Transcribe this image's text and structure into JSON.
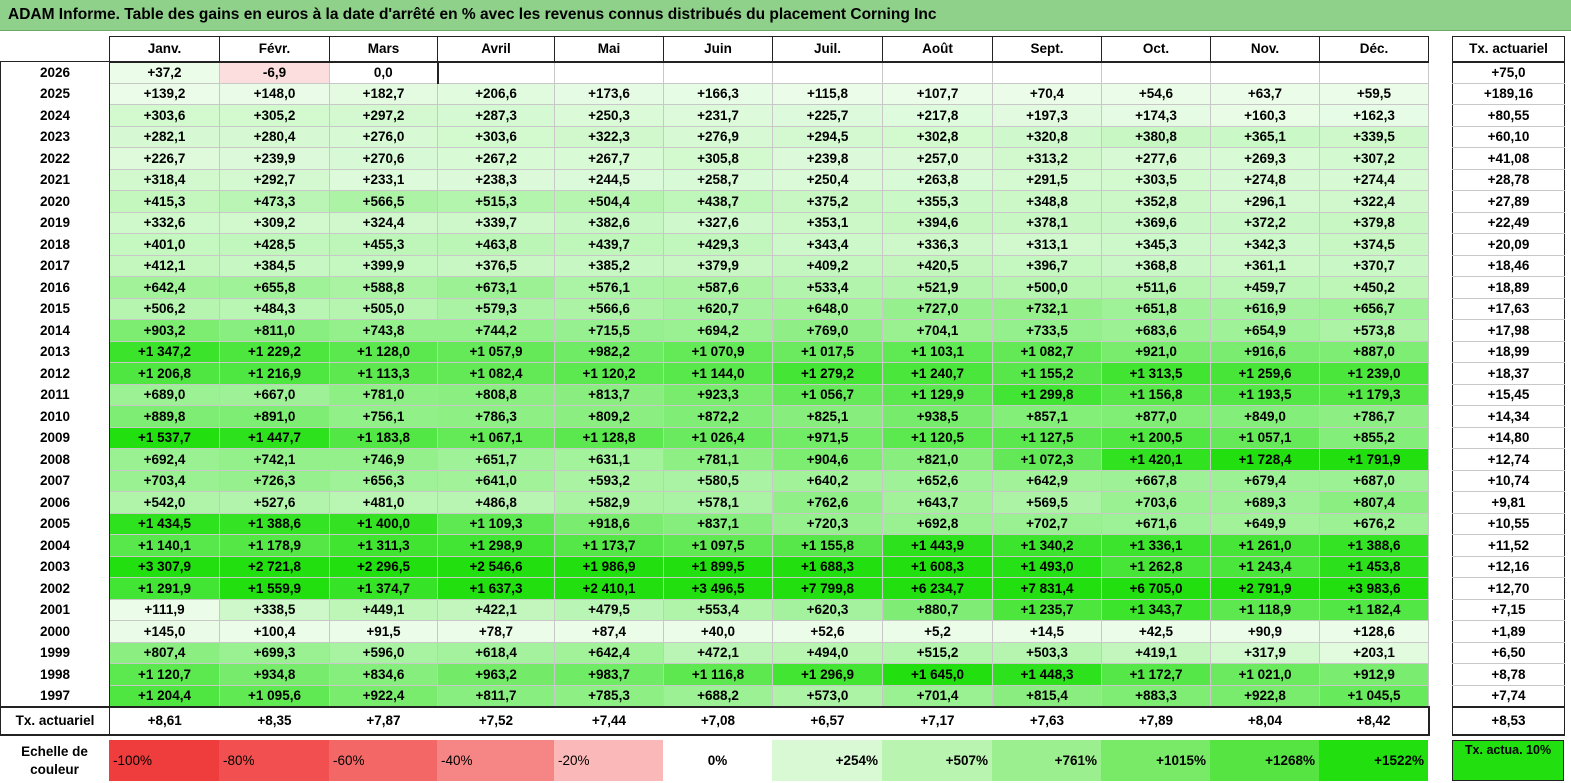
{
  "title": "ADAM Informe. Table des gains en euros à la date d'arrêté en % avec les revenus connus distribués du placement Corning Inc",
  "chart_data": {
    "type": "table",
    "months": [
      "Janv.",
      "Févr.",
      "Mars",
      "Avril",
      "Mai",
      "Juin",
      "Juil.",
      "Août",
      "Sept.",
      "Oct.",
      "Nov.",
      "Déc."
    ],
    "actuarial_header": "Tx. actuariel",
    "rows": [
      {
        "year": "2026",
        "values": [
          "+37,2",
          "-6,9",
          "0,0",
          "",
          "",
          "",
          "",
          "",
          "",
          "",
          "",
          ""
        ],
        "rate": "+75,0"
      },
      {
        "year": "2025",
        "values": [
          "+139,2",
          "+148,0",
          "+182,7",
          "+206,6",
          "+173,6",
          "+166,3",
          "+115,8",
          "+107,7",
          "+70,4",
          "+54,6",
          "+63,7",
          "+59,5"
        ],
        "rate": "+189,16"
      },
      {
        "year": "2024",
        "values": [
          "+303,6",
          "+305,2",
          "+297,2",
          "+287,3",
          "+250,3",
          "+231,7",
          "+225,7",
          "+217,8",
          "+197,3",
          "+174,3",
          "+160,3",
          "+162,3"
        ],
        "rate": "+80,55"
      },
      {
        "year": "2023",
        "values": [
          "+282,1",
          "+280,4",
          "+276,0",
          "+303,6",
          "+322,3",
          "+276,9",
          "+294,5",
          "+302,8",
          "+320,8",
          "+380,8",
          "+365,1",
          "+339,5"
        ],
        "rate": "+60,10"
      },
      {
        "year": "2022",
        "values": [
          "+226,7",
          "+239,9",
          "+270,6",
          "+267,2",
          "+267,7",
          "+305,8",
          "+239,8",
          "+257,0",
          "+313,2",
          "+277,6",
          "+269,3",
          "+307,2"
        ],
        "rate": "+41,08"
      },
      {
        "year": "2021",
        "values": [
          "+318,4",
          "+292,7",
          "+233,1",
          "+238,3",
          "+244,5",
          "+258,7",
          "+250,4",
          "+263,8",
          "+291,5",
          "+303,5",
          "+274,8",
          "+274,4"
        ],
        "rate": "+28,78"
      },
      {
        "year": "2020",
        "values": [
          "+415,3",
          "+473,3",
          "+566,5",
          "+515,3",
          "+504,4",
          "+438,7",
          "+375,2",
          "+355,3",
          "+348,8",
          "+352,8",
          "+296,1",
          "+322,4"
        ],
        "rate": "+27,89"
      },
      {
        "year": "2019",
        "values": [
          "+332,6",
          "+309,2",
          "+324,4",
          "+339,7",
          "+382,6",
          "+327,6",
          "+353,1",
          "+394,6",
          "+378,1",
          "+369,6",
          "+372,2",
          "+379,8"
        ],
        "rate": "+22,49"
      },
      {
        "year": "2018",
        "values": [
          "+401,0",
          "+428,5",
          "+455,3",
          "+463,8",
          "+439,7",
          "+429,3",
          "+343,4",
          "+336,3",
          "+313,1",
          "+345,3",
          "+342,3",
          "+374,5"
        ],
        "rate": "+20,09"
      },
      {
        "year": "2017",
        "values": [
          "+412,1",
          "+384,5",
          "+399,9",
          "+376,5",
          "+385,2",
          "+379,9",
          "+409,2",
          "+420,5",
          "+396,7",
          "+368,8",
          "+361,1",
          "+370,7"
        ],
        "rate": "+18,46"
      },
      {
        "year": "2016",
        "values": [
          "+642,4",
          "+655,8",
          "+588,8",
          "+673,1",
          "+576,1",
          "+587,6",
          "+533,4",
          "+521,9",
          "+500,0",
          "+511,6",
          "+459,7",
          "+450,2"
        ],
        "rate": "+18,89"
      },
      {
        "year": "2015",
        "values": [
          "+506,2",
          "+484,3",
          "+505,0",
          "+579,3",
          "+566,6",
          "+620,7",
          "+648,0",
          "+727,0",
          "+732,1",
          "+651,8",
          "+616,9",
          "+656,7"
        ],
        "rate": "+17,63"
      },
      {
        "year": "2014",
        "values": [
          "+903,2",
          "+811,0",
          "+743,8",
          "+744,2",
          "+715,5",
          "+694,2",
          "+769,0",
          "+704,1",
          "+733,5",
          "+683,6",
          "+654,9",
          "+573,8"
        ],
        "rate": "+17,98"
      },
      {
        "year": "2013",
        "values": [
          "+1 347,2",
          "+1 229,2",
          "+1 128,0",
          "+1 057,9",
          "+982,2",
          "+1 070,9",
          "+1 017,5",
          "+1 103,1",
          "+1 082,7",
          "+921,0",
          "+916,6",
          "+887,0"
        ],
        "rate": "+18,99"
      },
      {
        "year": "2012",
        "values": [
          "+1 206,8",
          "+1 216,9",
          "+1 113,3",
          "+1 082,4",
          "+1 120,2",
          "+1 144,0",
          "+1 279,2",
          "+1 240,7",
          "+1 155,2",
          "+1 313,5",
          "+1 259,6",
          "+1 239,0"
        ],
        "rate": "+18,37"
      },
      {
        "year": "2011",
        "values": [
          "+689,0",
          "+667,0",
          "+781,0",
          "+808,8",
          "+813,7",
          "+923,3",
          "+1 056,7",
          "+1 129,9",
          "+1 299,8",
          "+1 156,8",
          "+1 193,5",
          "+1 179,3"
        ],
        "rate": "+15,45"
      },
      {
        "year": "2010",
        "values": [
          "+889,8",
          "+891,0",
          "+756,1",
          "+786,3",
          "+809,2",
          "+872,2",
          "+825,1",
          "+938,5",
          "+857,1",
          "+877,0",
          "+849,0",
          "+786,7"
        ],
        "rate": "+14,34"
      },
      {
        "year": "2009",
        "values": [
          "+1 537,7",
          "+1 447,7",
          "+1 183,8",
          "+1 067,1",
          "+1 128,8",
          "+1 026,4",
          "+971,5",
          "+1 120,5",
          "+1 127,5",
          "+1 200,5",
          "+1 057,1",
          "+855,2"
        ],
        "rate": "+14,80"
      },
      {
        "year": "2008",
        "values": [
          "+692,4",
          "+742,1",
          "+746,9",
          "+651,7",
          "+631,1",
          "+781,1",
          "+904,6",
          "+821,0",
          "+1 072,3",
          "+1 420,1",
          "+1 728,4",
          "+1 791,9"
        ],
        "rate": "+12,74"
      },
      {
        "year": "2007",
        "values": [
          "+703,4",
          "+726,3",
          "+656,3",
          "+641,0",
          "+593,2",
          "+580,5",
          "+640,2",
          "+652,6",
          "+642,9",
          "+667,8",
          "+679,4",
          "+687,0"
        ],
        "rate": "+10,74"
      },
      {
        "year": "2006",
        "values": [
          "+542,0",
          "+527,6",
          "+481,0",
          "+486,8",
          "+582,9",
          "+578,1",
          "+762,6",
          "+643,7",
          "+569,5",
          "+703,6",
          "+689,3",
          "+807,4"
        ],
        "rate": "+9,81"
      },
      {
        "year": "2005",
        "values": [
          "+1 434,5",
          "+1 388,6",
          "+1 400,0",
          "+1 109,3",
          "+918,6",
          "+837,1",
          "+720,3",
          "+692,8",
          "+702,7",
          "+671,6",
          "+649,9",
          "+676,2"
        ],
        "rate": "+10,55"
      },
      {
        "year": "2004",
        "values": [
          "+1 140,1",
          "+1 178,9",
          "+1 311,3",
          "+1 298,9",
          "+1 173,7",
          "+1 097,5",
          "+1 155,8",
          "+1 443,9",
          "+1 340,2",
          "+1 336,1",
          "+1 261,0",
          "+1 388,6"
        ],
        "rate": "+11,52"
      },
      {
        "year": "2003",
        "values": [
          "+3 307,9",
          "+2 721,8",
          "+2 296,5",
          "+2 546,6",
          "+1 986,9",
          "+1 899,5",
          "+1 688,3",
          "+1 608,3",
          "+1 493,0",
          "+1 262,8",
          "+1 243,4",
          "+1 453,8"
        ],
        "rate": "+12,16"
      },
      {
        "year": "2002",
        "values": [
          "+1 291,9",
          "+1 559,9",
          "+1 374,7",
          "+1 637,3",
          "+2 410,1",
          "+3 496,5",
          "+7 799,8",
          "+6 234,7",
          "+7 831,4",
          "+6 705,0",
          "+2 791,9",
          "+3 983,6"
        ],
        "rate": "+12,70"
      },
      {
        "year": "2001",
        "values": [
          "+111,9",
          "+338,5",
          "+449,1",
          "+422,1",
          "+479,5",
          "+553,4",
          "+620,3",
          "+880,7",
          "+1 235,7",
          "+1 343,7",
          "+1 118,9",
          "+1 182,4"
        ],
        "rate": "+7,15"
      },
      {
        "year": "2000",
        "values": [
          "+145,0",
          "+100,4",
          "+91,5",
          "+78,7",
          "+87,4",
          "+40,0",
          "+52,6",
          "+5,2",
          "+14,5",
          "+42,5",
          "+90,9",
          "+128,6"
        ],
        "rate": "+1,89"
      },
      {
        "year": "1999",
        "values": [
          "+807,4",
          "+699,3",
          "+596,0",
          "+618,4",
          "+642,4",
          "+472,1",
          "+494,0",
          "+515,2",
          "+503,3",
          "+419,1",
          "+317,9",
          "+203,1"
        ],
        "rate": "+6,50"
      },
      {
        "year": "1998",
        "values": [
          "+1 120,7",
          "+934,8",
          "+834,6",
          "+963,2",
          "+983,7",
          "+1 116,8",
          "+1 296,9",
          "+1 645,0",
          "+1 448,3",
          "+1 172,7",
          "+1 021,0",
          "+912,9"
        ],
        "rate": "+8,78"
      },
      {
        "year": "1997",
        "values": [
          "+1 204,4",
          "+1 095,6",
          "+922,4",
          "+811,7",
          "+785,3",
          "+688,2",
          "+573,0",
          "+701,4",
          "+815,4",
          "+883,3",
          "+922,8",
          "+1 045,5"
        ],
        "rate": "+7,74"
      }
    ],
    "footer": {
      "label": "Tx. actuariel",
      "values": [
        "+8,61",
        "+8,35",
        "+7,87",
        "+7,52",
        "+7,44",
        "+7,08",
        "+6,57",
        "+7,17",
        "+7,63",
        "+7,89",
        "+8,04",
        "+8,42"
      ],
      "rate": "+8,53"
    },
    "legend": {
      "label": "Echelle de couleur",
      "steps": [
        "-100%",
        "-80%",
        "-60%",
        "-40%",
        "-20%",
        "0%",
        "+254%",
        "+507%",
        "+761%",
        "+1015%",
        "+1268%",
        "+1522%"
      ],
      "colors": [
        "#ef3d3d",
        "#f25050",
        "#f46767",
        "#f68585",
        "#fab8b8",
        "#ffffff",
        "#d9f9d4",
        "#baf4b1",
        "#9cef8e",
        "#79ea68",
        "#56e443",
        "#22e010"
      ],
      "right_label": "Tx. actua. 10%",
      "right_color": "#22e010"
    },
    "color_scale": {
      "negative_color": "#f24a4a",
      "zero_color": "#ffffff",
      "positive_color": "#22e010",
      "positive_max": 1522,
      "actuarial_color": "#ffffff"
    }
  }
}
